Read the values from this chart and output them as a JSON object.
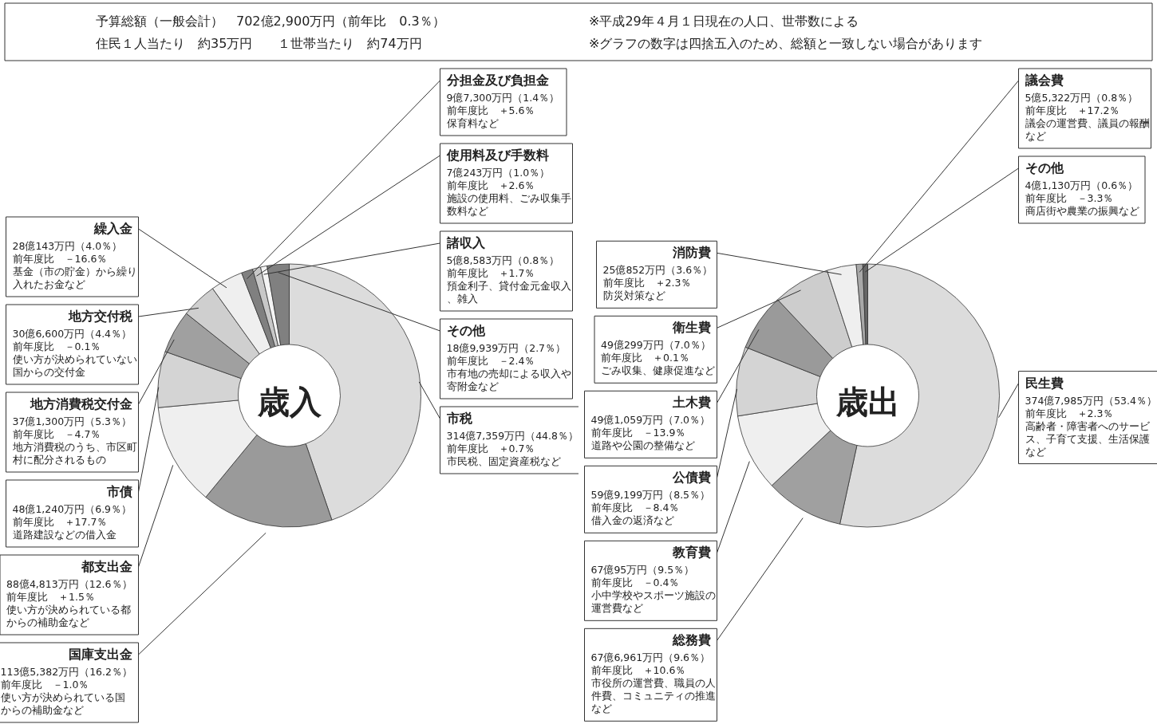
{
  "chart_data": [
    {
      "type": "donut",
      "title": "歳入",
      "categories": [
        "市税",
        "国庫支出金",
        "都支出金",
        "市債",
        "地方消費税交付金",
        "地方交付税",
        "繰入金",
        "分担金及び負担金",
        "使用料及び手数料",
        "諸収入",
        "その他"
      ],
      "values": [
        44.8,
        16.2,
        12.6,
        6.9,
        5.3,
        4.4,
        4.0,
        1.4,
        1.0,
        0.8,
        2.7
      ],
      "colors": [
        "#dcdcdc",
        "#9a9a9a",
        "#efefef",
        "#d4d4d4",
        "#a0a0a0",
        "#cfcfcf",
        "#efefef",
        "#808080",
        "#c8c8c8",
        "#f4f4f4",
        "#808080"
      ],
      "value_labels": [
        "314億7,359万円（44.8％）",
        "113億5,382万円（16.2％）",
        "88億4,813万円（12.6％）",
        "48億1,240万円（6.9％）",
        "37億1,300万円（5.3％）",
        "30億6,600万円（4.4％）",
        "28億143万円（4.0％）",
        "9億7,300万円（1.4％）",
        "7億243万円（1.0％）",
        "5億8,583万円（0.8％）",
        "18億9,939万円（2.7％）"
      ],
      "annotations": [
        "予算総額（一般会計）　702億2,900万円（前年比　0.3％）",
        "住民１人当たり　約35万円　　１世帯当たり　約74万円",
        "※平成29年４月１日現在の人口、世帯数による",
        "※グラフの数字は四捨五入のため、総額と一致しない場合があります",
        {
          "text": "前年度比　＋0.7％",
          "x": "市税"
        },
        {
          "text": "市民税、固定資産税など",
          "x": "市税"
        },
        {
          "text": "前年度比　－1.0％",
          "x": "国庫支出金"
        },
        {
          "text": "使い方が決められている国からの補助金など",
          "x": "国庫支出金"
        },
        {
          "text": "前年度比　＋1.5％",
          "x": "都支出金"
        },
        {
          "text": "使い方が決められている都からの補助金など",
          "x": "都支出金"
        },
        {
          "text": "前年度比　＋17.7％",
          "x": "市債"
        },
        {
          "text": "道路建設などの借入金",
          "x": "市債"
        },
        {
          "text": "前年度比　－4.7％",
          "x": "地方消費税交付金"
        },
        {
          "text": "地方消費税のうち、市区町村に配分されるもの",
          "x": "地方消費税交付金"
        },
        {
          "text": "前年度比　－0.1％",
          "x": "地方交付税"
        },
        {
          "text": "使い方が決められていない国からの交付金",
          "x": "地方交付税"
        },
        {
          "text": "前年度比　－16.6％",
          "x": "繰入金"
        },
        {
          "text": "基金（市の貯金）から繰り入れたお金など",
          "x": "繰入金"
        },
        {
          "text": "前年度比　＋5.6％",
          "x": "分担金及び負担金"
        },
        {
          "text": "保育料など",
          "x": "分担金及び負担金"
        },
        {
          "text": "前年度比　＋2.6％",
          "x": "使用料及び手数料"
        },
        {
          "text": "施設の使用料、ごみ収集手数料など",
          "x": "使用料及び手数料"
        },
        {
          "text": "前年度比　＋1.7％",
          "x": "諸収入"
        },
        {
          "text": "預金利子、貸付金元金収入、雑入",
          "x": "諸収入"
        },
        {
          "text": "前年度比　－2.4％",
          "x": "その他"
        },
        {
          "text": "市有地の売却による収入や寄附金など",
          "x": "その他"
        }
      ]
    },
    {
      "type": "donut",
      "title": "歳出",
      "categories": [
        "民生費",
        "総務費",
        "教育費",
        "公債費",
        "土木費",
        "衛生費",
        "消防費",
        "議会費",
        "その他"
      ],
      "values": [
        53.4,
        9.6,
        9.5,
        8.5,
        7.0,
        7.0,
        3.6,
        0.8,
        0.6
      ],
      "colors": [
        "#dcdcdc",
        "#a0a0a0",
        "#efefef",
        "#d4d4d4",
        "#9a9a9a",
        "#cdcdcd",
        "#efefef",
        "#a8a8a8",
        "#666666"
      ],
      "value_labels": [
        "374億7,985万円（53.4％）",
        "67億6,961万円（9.6％）",
        "67億95万円（9.5％）",
        "59億9,199万円（8.5％）",
        "49億1,059万円（7.0％）",
        "49億299万円（7.0％）",
        "25億852万円（3.6％）",
        "5億5,322万円（0.8％）",
        "4億1,130万円（0.6％）"
      ],
      "annotations": [
        {
          "text": "前年度比　＋2.3％",
          "x": "民生費"
        },
        {
          "text": "高齢者・障害者へのサービス、子育て支援、生活保護など",
          "x": "民生費"
        },
        {
          "text": "前年度比　＋10.6％",
          "x": "総務費"
        },
        {
          "text": "市役所の運営費、職員の人件費、コミュニティの推進など",
          "x": "総務費"
        },
        {
          "text": "前年度比　－0.4％",
          "x": "教育費"
        },
        {
          "text": "小中学校やスポーツ施設の運営費など",
          "x": "教育費"
        },
        {
          "text": "前年度比　－8.4％",
          "x": "公債費"
        },
        {
          "text": "借入金の返済など",
          "x": "公債費"
        },
        {
          "text": "前年度比　－13.9％",
          "x": "土木費"
        },
        {
          "text": "道路や公園の整備など",
          "x": "土木費"
        },
        {
          "text": "前年度比　＋0.1％",
          "x": "衛生費"
        },
        {
          "text": "ごみ収集、健康促進など",
          "x": "衛生費"
        },
        {
          "text": "前年度比　＋2.3％",
          "x": "消防費"
        },
        {
          "text": "防災対策など",
          "x": "消防費"
        },
        {
          "text": "前年度比　＋17.2％",
          "x": "議会費"
        },
        {
          "text": "議会の運営費、議員の報酬など",
          "x": "議会費"
        },
        {
          "text": "前年度比　－3.3％",
          "x": "その他"
        },
        {
          "text": "商店街や農業の振興など",
          "x": "その他"
        }
      ]
    }
  ]
}
